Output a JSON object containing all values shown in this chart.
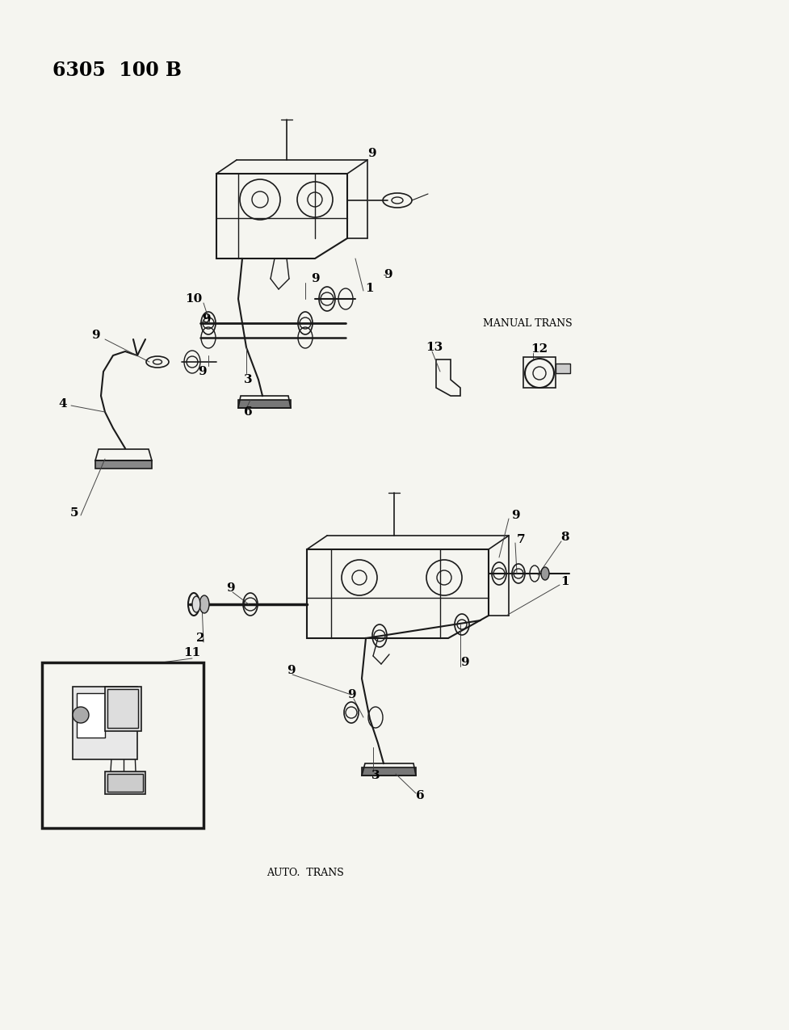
{
  "background_color": "#f5f5f0",
  "line_color": "#1a1a1a",
  "text_color": "#000000",
  "header_text": "6305  100 B"
}
